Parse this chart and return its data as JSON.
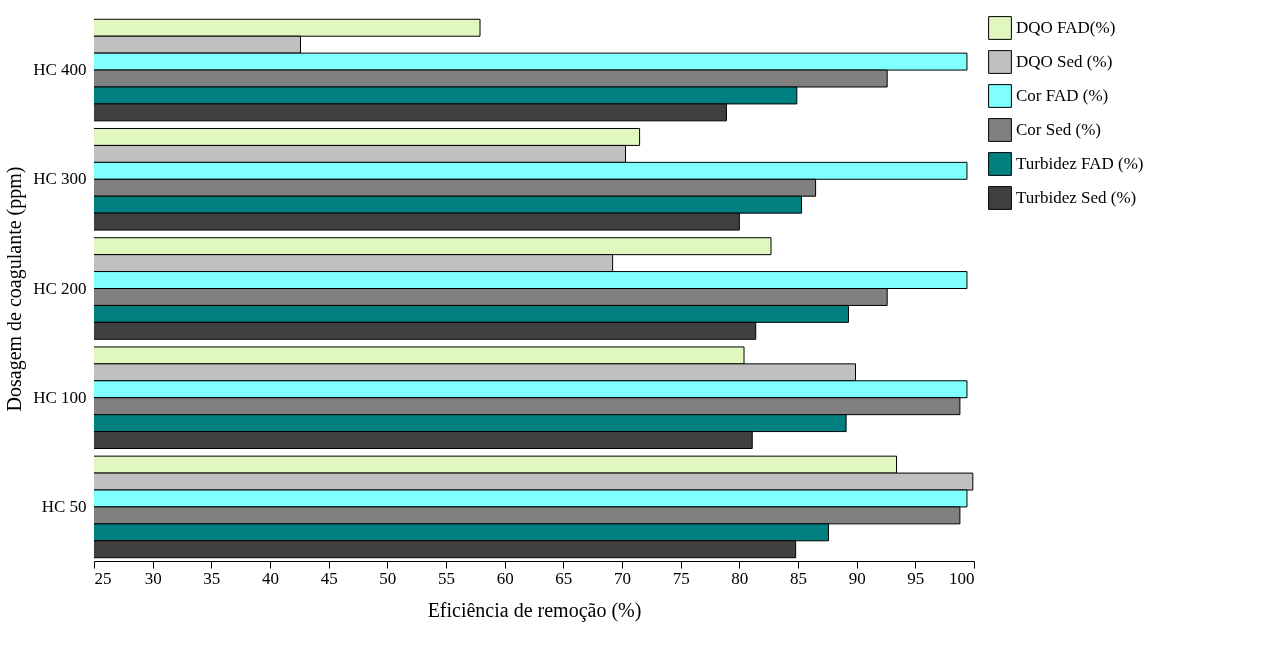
{
  "chart_data": {
    "type": "bar",
    "orientation": "horizontal",
    "xlabel": "Eficiência de remoção (%)",
    "ylabel": "Dosagem de coagulante (ppm)",
    "categories": [
      "HC 400",
      "HC 300",
      "HC 200",
      "HC 100",
      "HC 50"
    ],
    "series": [
      {
        "name": "DQO FAD(%)",
        "color": "#e0f8c0",
        "values": [
          57.9,
          71.5,
          82.7,
          80.4,
          93.4
        ]
      },
      {
        "name": "DQO Sed (%)",
        "color": "#c0c0c0",
        "values": [
          42.6,
          70.3,
          69.2,
          89.9,
          99.9
        ]
      },
      {
        "name": "Cor FAD (%)",
        "color": "#80ffff",
        "values": [
          99.4,
          99.4,
          99.4,
          99.4,
          99.4
        ]
      },
      {
        "name": "Cor Sed (%)",
        "color": "#808080",
        "values": [
          92.6,
          86.5,
          92.6,
          98.8,
          98.8
        ]
      },
      {
        "name": "Turbidez FAD (%)",
        "color": "#008080",
        "values": [
          84.9,
          85.3,
          89.3,
          89.1,
          87.6
        ]
      },
      {
        "name": "Turbidez Sed (%)",
        "color": "#404040",
        "values": [
          78.9,
          80.0,
          81.4,
          81.1,
          84.8
        ]
      }
    ],
    "xlim": [
      25,
      100
    ],
    "xticks": [
      25,
      30,
      35,
      40,
      45,
      50,
      55,
      60,
      65,
      70,
      75,
      80,
      85,
      90,
      95,
      100
    ],
    "legend": "top right"
  }
}
